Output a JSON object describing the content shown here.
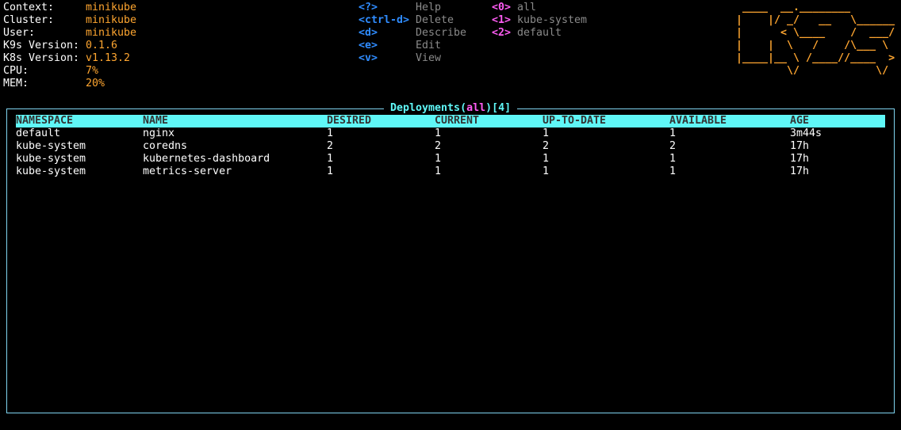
{
  "info": [
    {
      "label": "Context:",
      "value": "minikube"
    },
    {
      "label": "Cluster:",
      "value": "minikube"
    },
    {
      "label": "User:",
      "value": "minikube"
    },
    {
      "label": "K9s Version:",
      "value": "0.1.6"
    },
    {
      "label": "K8s Version:",
      "value": "v1.13.2"
    },
    {
      "label": "CPU:",
      "value": "7%"
    },
    {
      "label": "MEM:",
      "value": "20%"
    }
  ],
  "actions": [
    {
      "key": "<?>",
      "label": "Help"
    },
    {
      "key": "<ctrl-d>",
      "label": "Delete"
    },
    {
      "key": "<d>",
      "label": "Describe"
    },
    {
      "key": "<e>",
      "label": "Edit"
    },
    {
      "key": "<v>",
      "label": "View"
    }
  ],
  "namespaces": [
    {
      "key": "<0>",
      "label": "all"
    },
    {
      "key": "<1>",
      "label": "kube-system"
    },
    {
      "key": "<2>",
      "label": "default"
    }
  ],
  "logo": " ____  __.________       \n|    |/ _/   __   \\______\n|      < \\____    /  ___/\n|    |  \\   /    /\\___ \\ \n|____|__ \\ /____//____  >\n        \\/            \\/ ",
  "table": {
    "title": "Deployments",
    "namespace": "all",
    "count": "4",
    "columns": [
      "NAMESPACE",
      "NAME",
      "DESIRED",
      "CURRENT",
      "UP-TO-DATE",
      "AVAILABLE",
      "AGE"
    ],
    "rows": [
      [
        "default",
        "nginx",
        "1",
        "1",
        "1",
        "1",
        "3m44s"
      ],
      [
        "kube-system",
        "coredns",
        "2",
        "2",
        "2",
        "2",
        "17h"
      ],
      [
        "kube-system",
        "kubernetes-dashboard",
        "1",
        "1",
        "1",
        "1",
        "17h"
      ],
      [
        "kube-system",
        "metrics-server",
        "1",
        "1",
        "1",
        "1",
        "17h"
      ]
    ]
  }
}
